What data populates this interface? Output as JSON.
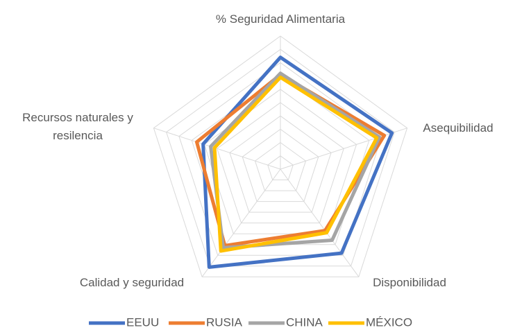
{
  "chart_data": {
    "type": "radar",
    "categories": [
      "% Seguridad Alimentaria",
      "Asequibilidad",
      "Disponibilidad",
      "Calidad y seguridad",
      "Recursos naturales y resilencia"
    ],
    "series": [
      {
        "name": "EEUU",
        "color": "#4472c4",
        "values": [
          84,
          88,
          78,
          91,
          61
        ]
      },
      {
        "name": "RUSIA",
        "color": "#ed7d31",
        "values": [
          71,
          82,
          57,
          71,
          66
        ]
      },
      {
        "name": "CHINA",
        "color": "#a5a5a5",
        "values": [
          72,
          78,
          66,
          73,
          55
        ]
      },
      {
        "name": "MÉXICO",
        "color": "#ffc000",
        "values": [
          69,
          76,
          59,
          76,
          52
        ]
      }
    ],
    "ylim": [
      0,
      100
    ],
    "yticks": [
      0,
      10,
      20,
      30,
      40,
      50,
      60,
      70,
      80,
      90,
      100
    ],
    "grid": true,
    "legend": "bottom"
  }
}
